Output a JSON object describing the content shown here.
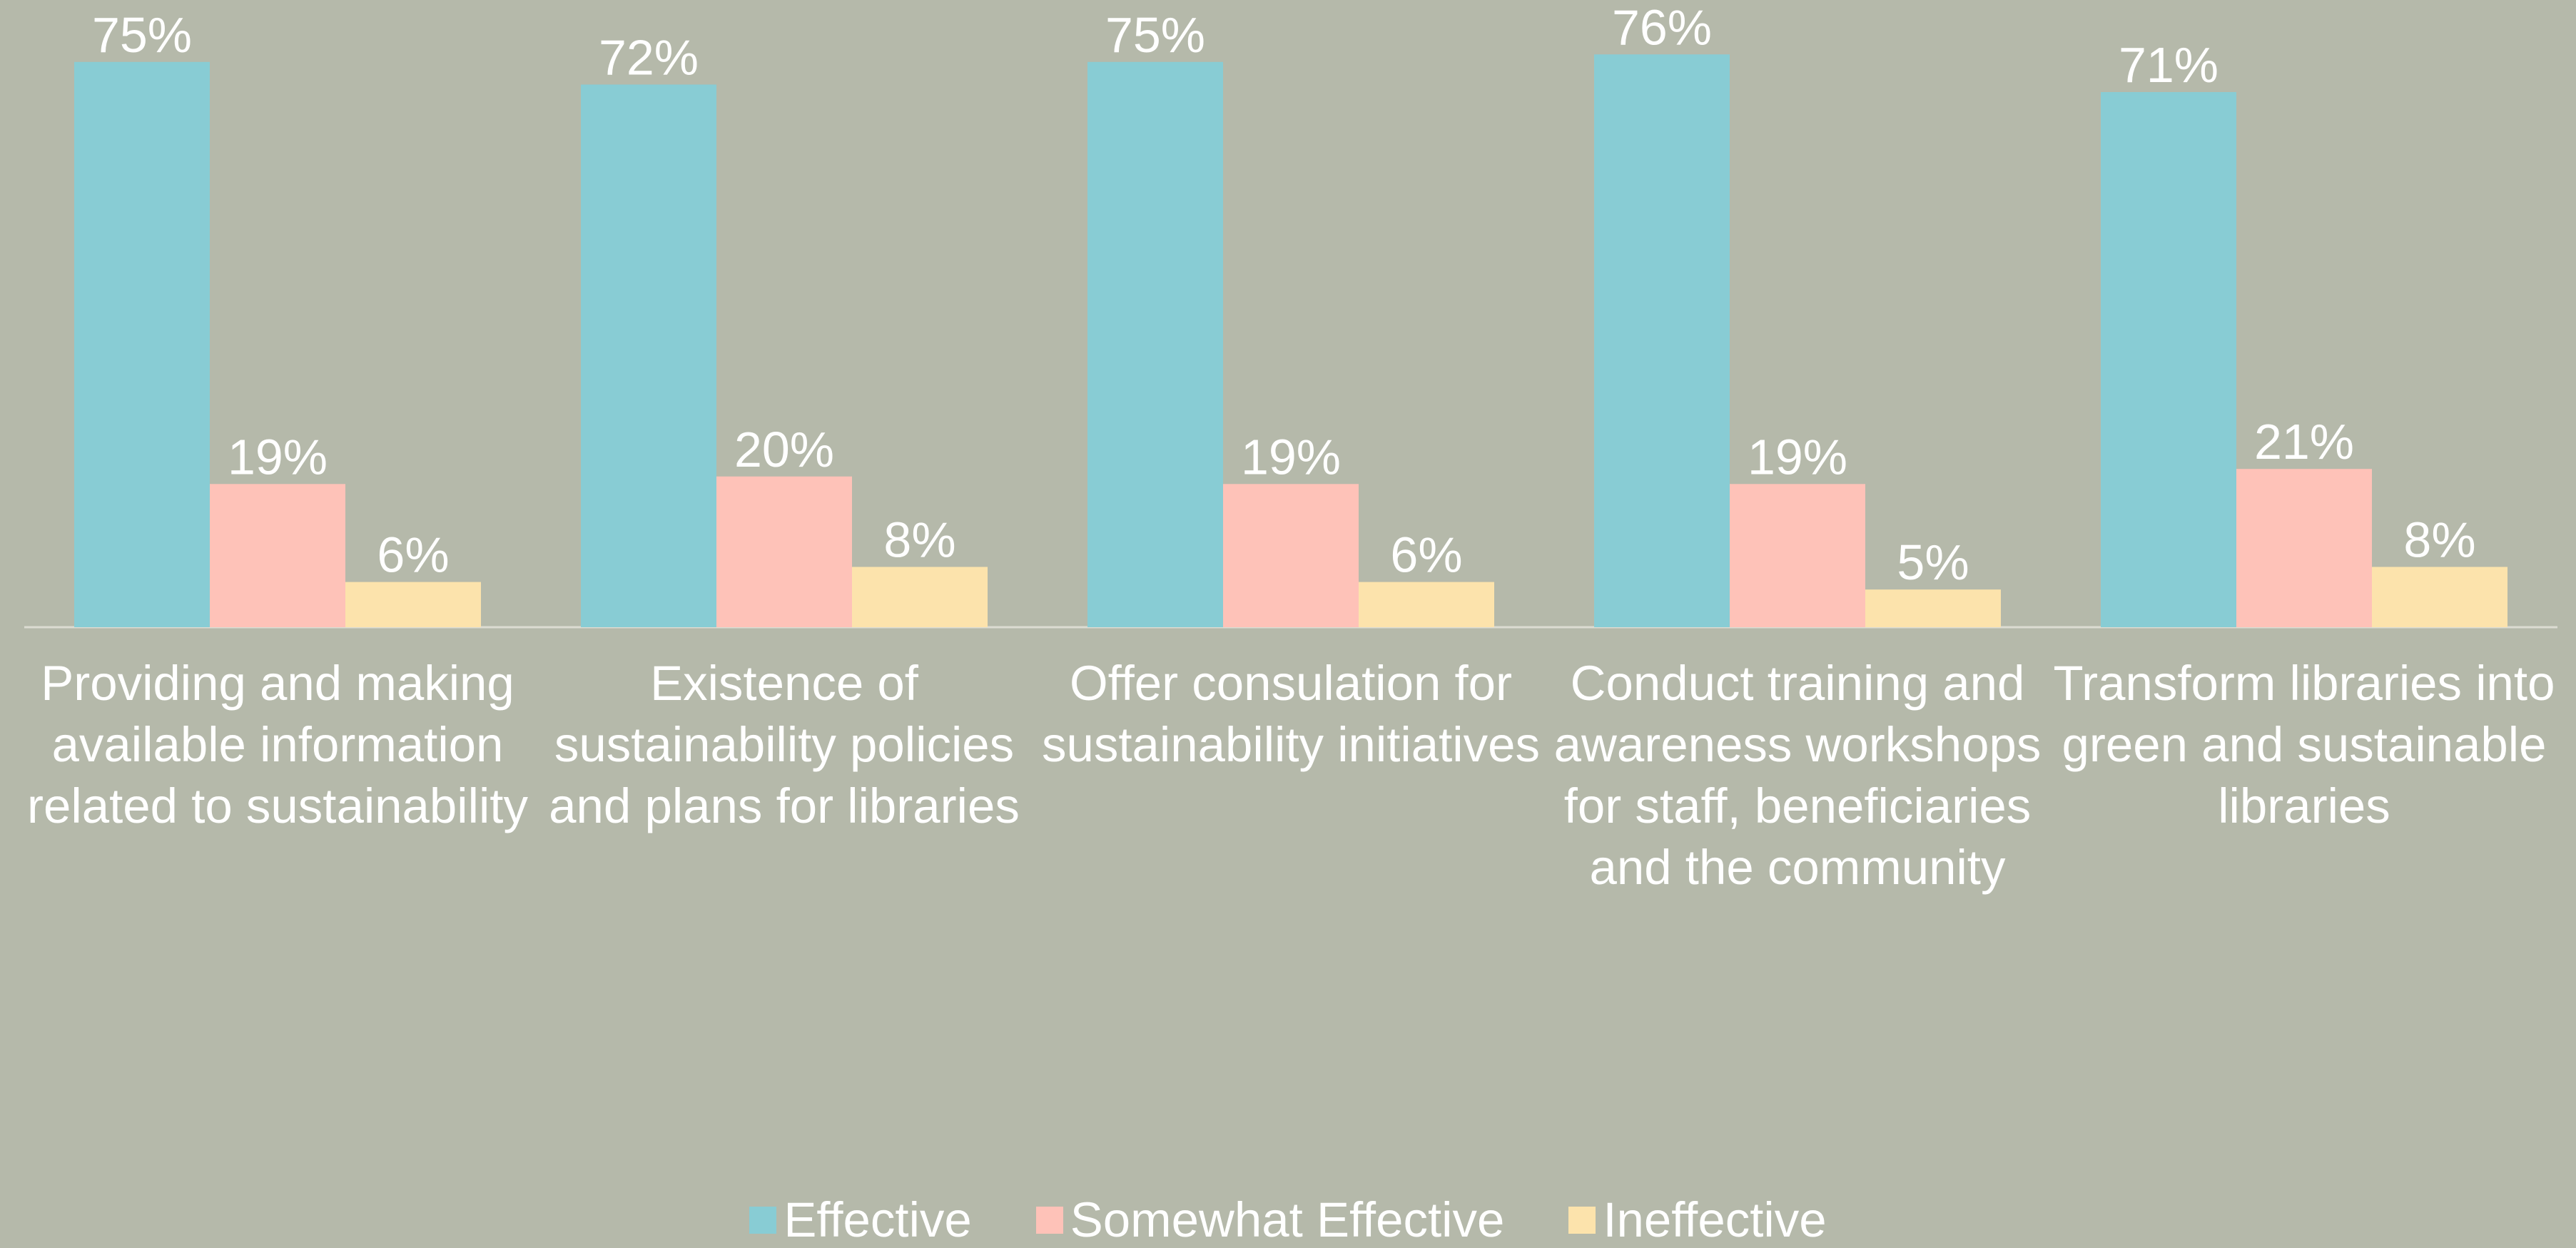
{
  "chart_data": {
    "type": "bar",
    "categories": [
      "Providing and making available information related to sustainability",
      "Existence of sustainability policies and plans for libraries",
      "Offer consulation for sustainability initiatives",
      "Conduct training and awareness workshops for staff, beneficiaries and the community",
      "Transform libraries into green and sustainable libraries"
    ],
    "series": [
      {
        "name": "Effective",
        "color": "#88ccd4",
        "values": [
          75,
          72,
          75,
          76,
          71
        ],
        "value_labels": [
          "75%",
          "72%",
          "75%",
          "76%",
          "71%"
        ]
      },
      {
        "name": "Somewhat Effective",
        "color": "#fec2b8",
        "values": [
          19,
          20,
          19,
          19,
          21
        ],
        "value_labels": [
          "19%",
          "20%",
          "19%",
          "19%",
          "21%"
        ]
      },
      {
        "name": "Ineffective",
        "color": "#fce3ac",
        "values": [
          6,
          8,
          6,
          5,
          8
        ],
        "value_labels": [
          "6%",
          "8%",
          "6%",
          "5%",
          "8%"
        ]
      }
    ],
    "ylim": [
      0,
      80
    ],
    "legend": "bottom"
  }
}
